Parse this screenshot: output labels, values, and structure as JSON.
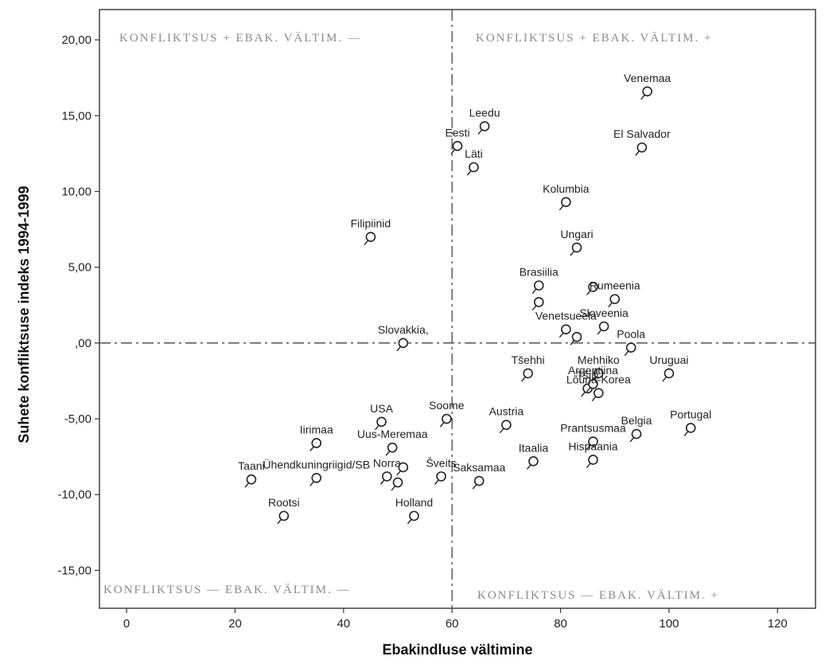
{
  "chart_data": {
    "type": "scatter",
    "xlabel": "Ebakindluse vältimine",
    "ylabel": "Suhete konfliktsuse indeks 1994-1999",
    "xlim": [
      -5,
      127
    ],
    "ylim": [
      -17.5,
      22
    ],
    "x_ticks": [
      "0",
      "20",
      "40",
      "60",
      "80",
      "100",
      "120"
    ],
    "y_ticks": [
      "20,00",
      "15,00",
      "10,00",
      "5,00",
      ",00",
      "-5,00",
      "-10,00",
      "-15,00"
    ],
    "x_tick_values": [
      0,
      20,
      40,
      60,
      80,
      100,
      120
    ],
    "y_tick_values": [
      20,
      15,
      10,
      5,
      0,
      -5,
      -10,
      -15
    ],
    "reference_lines": {
      "x": 60,
      "y": 0
    },
    "quadrant_annotations": {
      "top_left": "KONFLIKTSUS + EBAK. VÄLTIM. —",
      "top_right": "KONFLIKTSUS + EBAK. VÄLTIM. +",
      "bottom_left": "KONFLIKTSUS — EBAK. VÄLTIM. —",
      "bottom_right": "KONFLIKTSUS — EBAK. VÄLTIM. +"
    },
    "points": [
      {
        "label": "Venemaa",
        "x": 96,
        "y": 16.6
      },
      {
        "label": "Leedu",
        "x": 66,
        "y": 14.3
      },
      {
        "label": "Eesti",
        "x": 61,
        "y": 13.0
      },
      {
        "label": "El Salvador",
        "x": 95,
        "y": 12.9
      },
      {
        "label": "Läti",
        "x": 64,
        "y": 11.6
      },
      {
        "label": "Kolumbia",
        "x": 81,
        "y": 9.3
      },
      {
        "label": "Filipiinid",
        "x": 45,
        "y": 7.0
      },
      {
        "label": "Ungari",
        "x": 83,
        "y": 6.3
      },
      {
        "label": "Brasiilia",
        "x": 76,
        "y": 3.8
      },
      {
        "label": "",
        "x": 86,
        "y": 3.7
      },
      {
        "label": "Rumeenia",
        "x": 90,
        "y": 2.9
      },
      {
        "label": "",
        "x": 76,
        "y": 2.7
      },
      {
        "label": "Venetsueela",
        "x": 81,
        "y": 0.9
      },
      {
        "label": "Sloveenia",
        "x": 88,
        "y": 1.1
      },
      {
        "label": "",
        "x": 83,
        "y": 0.4
      },
      {
        "label": "Slovakkia,",
        "x": 51,
        "y": 0.0
      },
      {
        "label": "Poola",
        "x": 93,
        "y": -0.3
      },
      {
        "label": "Mehhiko",
        "x": 87,
        "y": -2.0
      },
      {
        "label": "Tšehhi",
        "x": 74,
        "y": -2.0
      },
      {
        "label": "Uruguai",
        "x": 100,
        "y": -2.0
      },
      {
        "label": "Tšiili",
        "x": 85,
        "y": -3.0
      },
      {
        "label": "Argentiina",
        "x": 86,
        "y": -2.7
      },
      {
        "label": "Lõuna-Korea",
        "x": 87,
        "y": -3.3
      },
      {
        "label": "USA",
        "x": 47,
        "y": -5.2
      },
      {
        "label": "Soome",
        "x": 59,
        "y": -5.0
      },
      {
        "label": "Austria",
        "x": 70,
        "y": -5.4
      },
      {
        "label": "Portugal",
        "x": 104,
        "y": -5.6
      },
      {
        "label": "Iirimaa",
        "x": 35,
        "y": -6.6
      },
      {
        "label": "Uus-Meremaa",
        "x": 49,
        "y": -6.9
      },
      {
        "label": "Prantsusmaa",
        "x": 86,
        "y": -6.5
      },
      {
        "label": "Belgia",
        "x": 94,
        "y": -6.0
      },
      {
        "label": "Itaalia",
        "x": 75,
        "y": -7.8
      },
      {
        "label": "Hispaania",
        "x": 86,
        "y": -7.7
      },
      {
        "label": "Taani",
        "x": 23,
        "y": -9.0
      },
      {
        "label": "Ühendkuningriigid/SB",
        "x": 35,
        "y": -8.9
      },
      {
        "label": "Norra",
        "x": 48,
        "y": -8.8
      },
      {
        "label": "",
        "x": 50,
        "y": -9.2
      },
      {
        "label": "",
        "x": 51,
        "y": -8.2
      },
      {
        "label": "Šveits",
        "x": 58,
        "y": -8.8
      },
      {
        "label": "Saksamaa",
        "x": 65,
        "y": -9.1
      },
      {
        "label": "Rootsi",
        "x": 29,
        "y": -11.4
      },
      {
        "label": "Holland",
        "x": 53,
        "y": -11.4
      }
    ]
  }
}
